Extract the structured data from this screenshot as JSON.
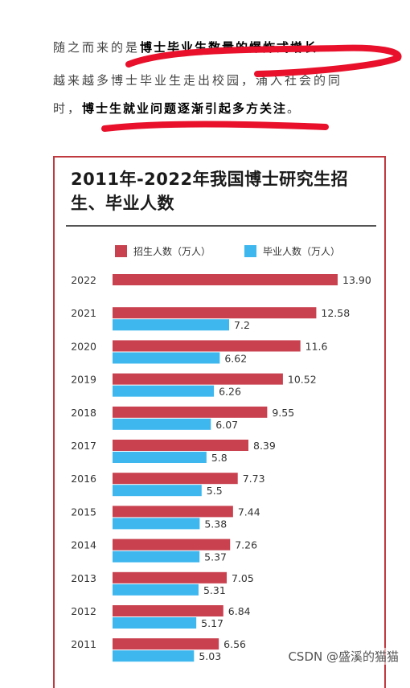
{
  "text": {
    "line1_plain": "随之而来的是",
    "line1_bold": "博士毕业生数量的爆炸式增长",
    "line2": "越来越多博士毕业生走出校园，涌入社会的同",
    "line3_plain": "时，",
    "line3_bold": "博士生就业问题逐渐引起多方关注",
    "line3_end": "。"
  },
  "watermark": "CSDN @盛溪的猫猫",
  "colors": {
    "enroll": "#c9414f",
    "grad": "#3db7ee",
    "frame": "#c0393f",
    "scribble": "#e8102a"
  },
  "chart_data": {
    "type": "bar",
    "orientation": "horizontal",
    "title": "2011年-2022年我国博士研究生招生、毕业人数",
    "legend_position": "top",
    "categories": [
      "2022",
      "2021",
      "2020",
      "2019",
      "2018",
      "2017",
      "2016",
      "2015",
      "2014",
      "2013",
      "2012",
      "2011"
    ],
    "series": [
      {
        "name": "招生人数（万人）",
        "color": "#c9414f",
        "values": [
          13.9,
          12.58,
          11.6,
          10.52,
          9.55,
          8.39,
          7.73,
          7.44,
          7.26,
          7.05,
          6.84,
          6.56
        ],
        "labels": [
          "13.90",
          "12.58",
          "11.6",
          "10.52",
          "9.55",
          "8.39",
          "7.73",
          "7.44",
          "7.26",
          "7.05",
          "6.84",
          "6.56"
        ]
      },
      {
        "name": "毕业人数（万人）",
        "color": "#3db7ee",
        "values": [
          null,
          7.2,
          6.62,
          6.26,
          6.07,
          5.8,
          5.5,
          5.38,
          5.37,
          5.31,
          5.17,
          5.03
        ],
        "labels": [
          "",
          "7.2",
          "6.62",
          "6.26",
          "6.07",
          "5.8",
          "5.5",
          "5.38",
          "5.37",
          "5.31",
          "5.17",
          "5.03"
        ]
      }
    ],
    "xlim": [
      0,
      13.9
    ],
    "grid": false
  }
}
